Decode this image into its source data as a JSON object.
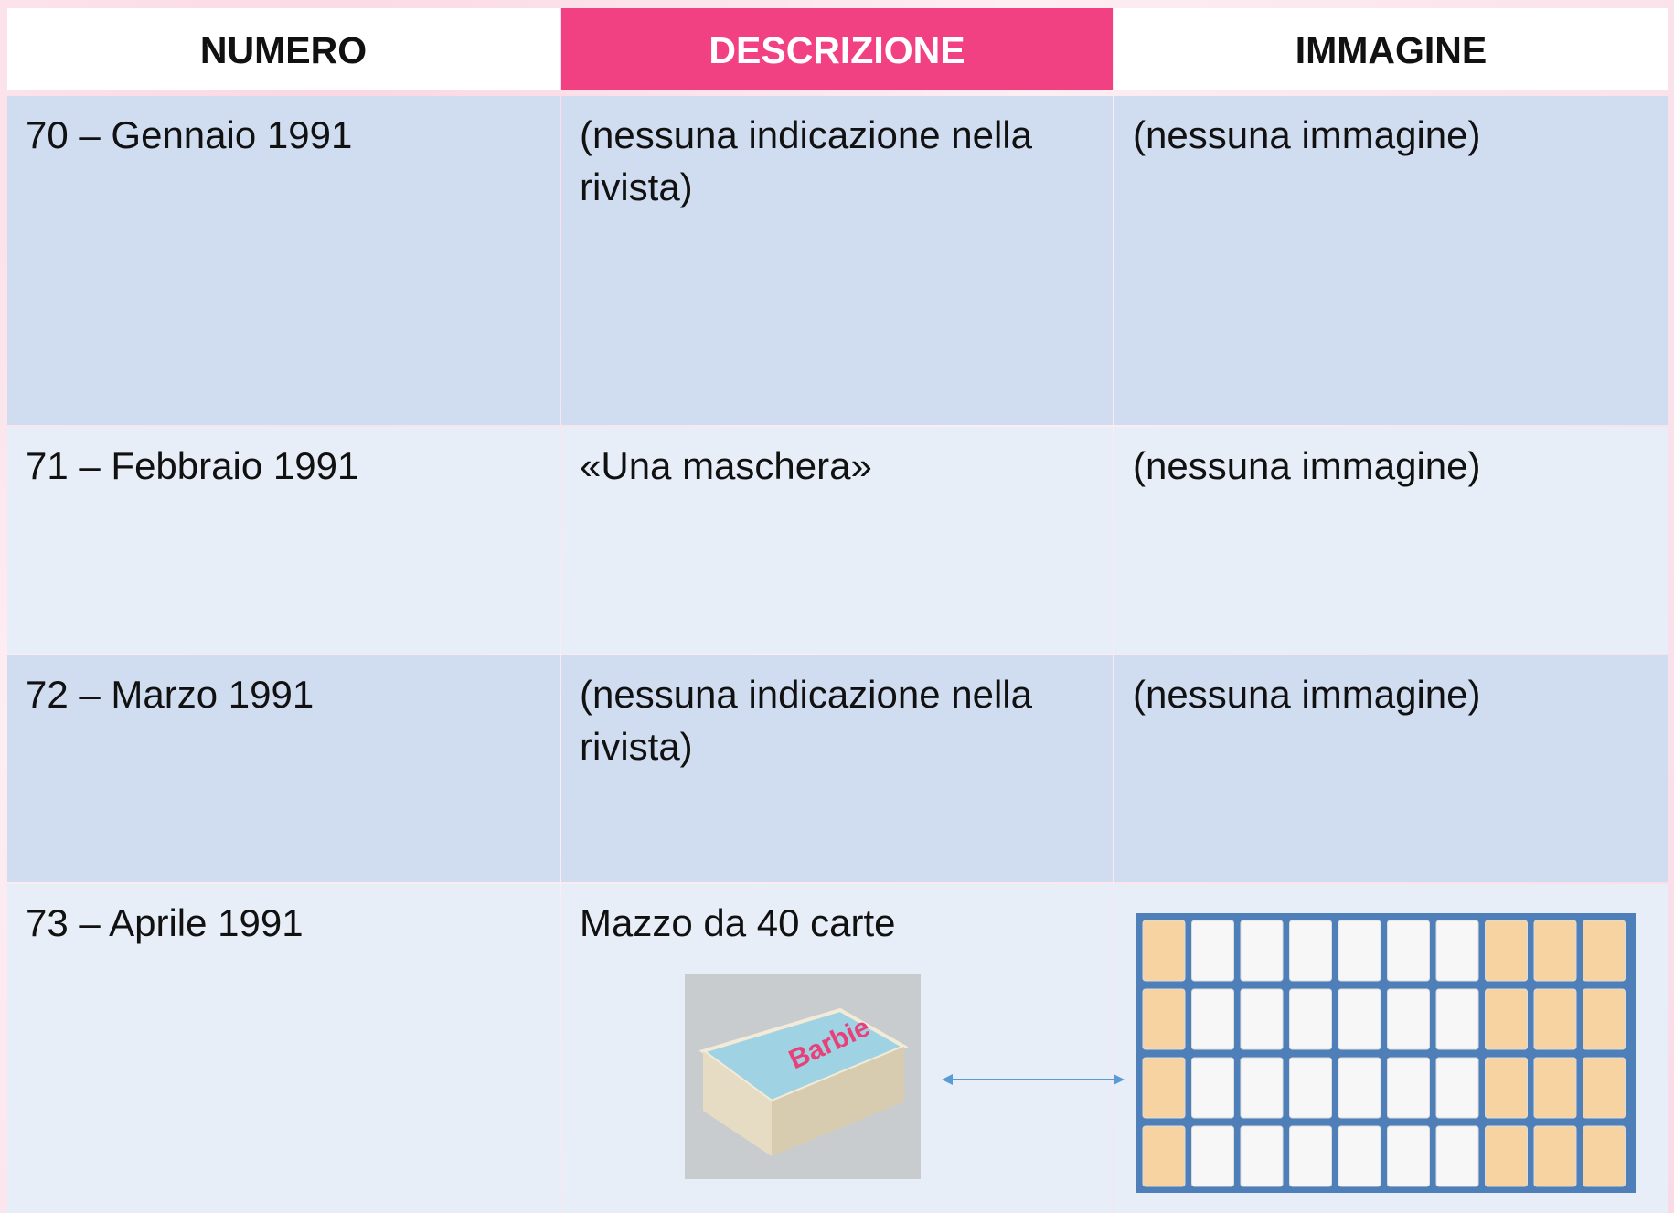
{
  "header": {
    "columns": [
      "NUMERO",
      "DESCRIZIONE",
      "IMMAGINE"
    ]
  },
  "table": {
    "rows": [
      [
        "70 – Gennaio 1991",
        "(nessuna indicazione nella rivista)",
        "(nessuna immagine)"
      ],
      [
        "71 – Febbraio 1991",
        "«Una maschera»",
        "(nessuna immagine)"
      ],
      [
        "72 – Marzo 1991",
        "(nessuna indicazione nella rivista)",
        "(nessuna immagine)"
      ],
      [
        "73 – Aprile 1991",
        "Mazzo da 40 carte",
        null
      ]
    ]
  }
}
